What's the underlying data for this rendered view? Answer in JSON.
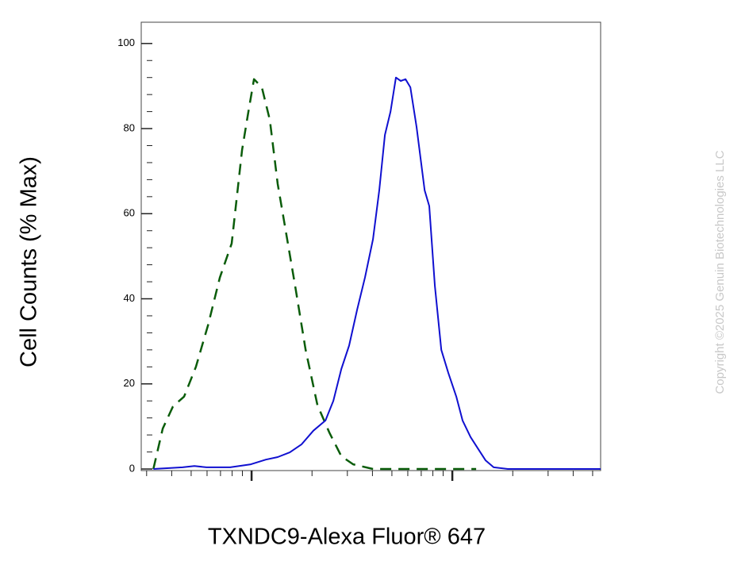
{
  "chart_data": {
    "type": "line",
    "y_label": "Cell Counts (% Max)",
    "x_label": "TXNDC9-Alexa Fluor® 647",
    "watermark": "Copyright ©2025 Genuin Biotechnologies LLC",
    "xscale": "log",
    "xlim": [
      282,
      54800
    ],
    "xticks": [
      1000,
      10000
    ],
    "xminorticks": [
      300,
      400,
      500,
      600,
      700,
      800,
      900,
      2000,
      3000,
      4000,
      5000,
      6000,
      7000,
      8000,
      9000,
      20000,
      30000,
      40000,
      50000
    ],
    "x_tick_labels_shown": false,
    "ylim": [
      0,
      105
    ],
    "yticks": [
      0,
      20,
      40,
      60,
      80,
      100
    ],
    "yminorticks": [
      4,
      8,
      12,
      16,
      24,
      28,
      32,
      36,
      44,
      48,
      52,
      56,
      64,
      68,
      72,
      76,
      84,
      88,
      92,
      96
    ],
    "series": [
      {
        "color": "#0a5c0a",
        "dash": true,
        "x": [
          324,
          361,
          406,
          461,
          528,
          607,
          695,
          796,
          897,
          964,
          1028,
          1125,
          1233,
          1349,
          1479,
          1648,
          1858,
          2128,
          2438,
          2799,
          3206,
          4027,
          6339,
          13140
        ],
        "values": [
          0,
          9.5,
          14.7,
          17,
          24,
          33.8,
          45,
          53,
          75,
          84,
          91.6,
          89.7,
          82,
          67,
          56,
          43,
          28,
          15,
          8.6,
          3,
          1.1,
          0,
          0,
          0
        ]
      },
      {
        "color": "#1010d0",
        "dash": false,
        "x": [
          324,
          453,
          519,
          596,
          782,
          992,
          1178,
          1349,
          1549,
          1774,
          2032,
          2333,
          2553,
          2799,
          3062,
          3357,
          3673,
          4027,
          4325,
          4613,
          4920,
          5236,
          5534,
          5848,
          6180,
          6637,
          7278,
          7674,
          8185,
          8810,
          9550,
          10470,
          11250,
          12330,
          13370,
          14660,
          16070,
          18920,
          54800
        ],
        "values": [
          0,
          0.4,
          0.7,
          0.4,
          0.4,
          1.1,
          2.2,
          2.8,
          3.9,
          5.8,
          9,
          11.4,
          16,
          23.5,
          29,
          37.5,
          45,
          54,
          65.5,
          78.5,
          84,
          92,
          91.2,
          91.6,
          89.7,
          80.4,
          65.5,
          61.8,
          43,
          28,
          22.6,
          17,
          11.4,
          7.5,
          4.9,
          2,
          0.4,
          0,
          0
        ]
      }
    ]
  }
}
